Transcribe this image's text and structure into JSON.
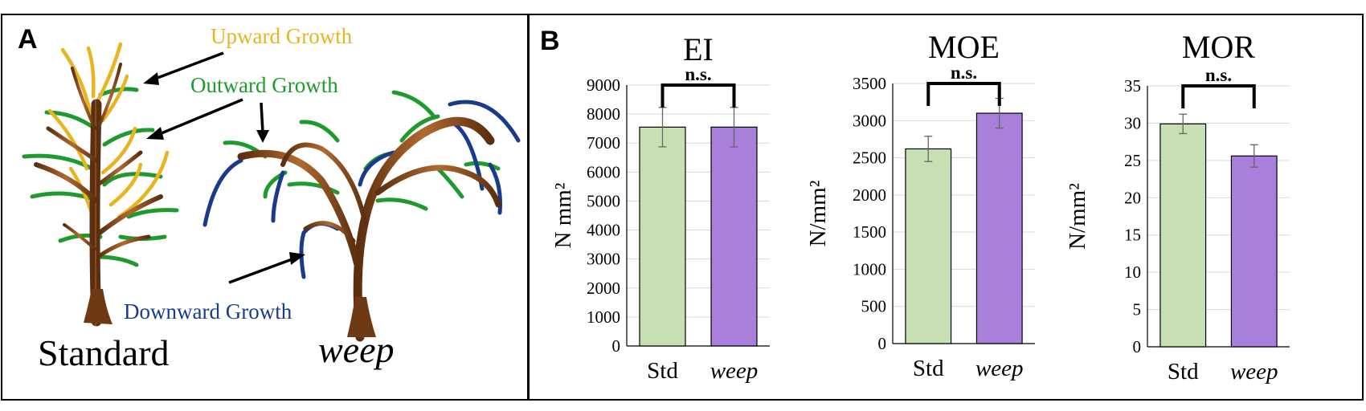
{
  "panel_a": {
    "letter": "A",
    "labels": {
      "upward": "Upward Growth",
      "outward": "Outward Growth",
      "downward": "Downward Growth",
      "standard": "Standard",
      "weep": "weep"
    },
    "colors": {
      "upward": "#e8b422",
      "outward": "#1f9a2c",
      "downward": "#1a3a8c",
      "trunk": "#8a4a1c"
    },
    "icons": [
      "standard-tree-illustration",
      "weeping-tree-illustration"
    ]
  },
  "panel_b": {
    "letter": "B",
    "significance_label": "n.s.",
    "colors": {
      "std": "#c6e0b4",
      "weep": "#a97fdc"
    }
  },
  "chart_data": [
    {
      "type": "bar",
      "title": "EI",
      "ylabel": "N mm²",
      "categories": [
        "Std",
        "weep"
      ],
      "values": [
        7550,
        7550
      ],
      "errors": [
        680,
        680
      ],
      "ylim": [
        0,
        9000
      ],
      "yticks": [
        "0",
        "1000",
        "2000",
        "3000",
        "4000",
        "5000",
        "6000",
        "7000",
        "8000",
        "9000"
      ],
      "annotation": "n.s.",
      "grid": true
    },
    {
      "type": "bar",
      "title": "MOE",
      "ylabel": "N/mm²",
      "categories": [
        "Std",
        "weep"
      ],
      "values": [
        2620,
        3100
      ],
      "errors": [
        170,
        200
      ],
      "ylim": [
        0,
        3500
      ],
      "yticks": [
        "0",
        "500",
        "1000",
        "1500",
        "2000",
        "2500",
        "3000",
        "3500"
      ],
      "annotation": "n.s.",
      "grid": true
    },
    {
      "type": "bar",
      "title": "MOR",
      "ylabel": "N/mm²",
      "categories": [
        "Std",
        "weep"
      ],
      "values": [
        29.9,
        25.6
      ],
      "errors": [
        1.3,
        1.5
      ],
      "ylim": [
        0,
        35
      ],
      "yticks": [
        "0",
        "5",
        "10",
        "15",
        "20",
        "25",
        "30",
        "35"
      ],
      "annotation": "n.s.",
      "grid": true
    }
  ]
}
